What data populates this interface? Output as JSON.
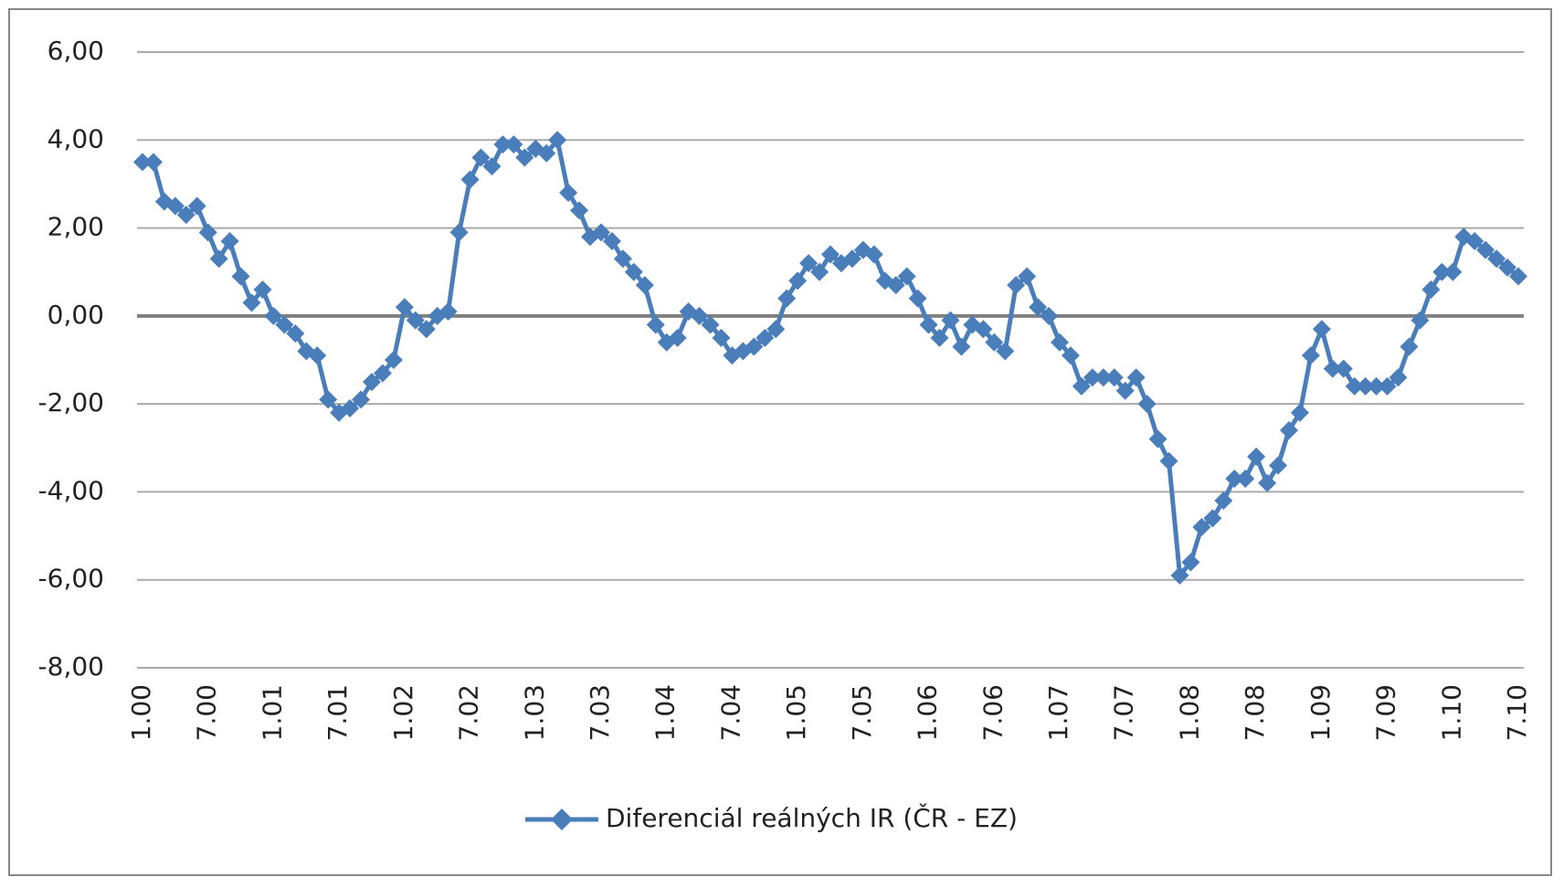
{
  "chart_data": {
    "type": "line",
    "categories": [
      "1.00",
      null,
      null,
      null,
      null,
      null,
      "7.00",
      null,
      null,
      null,
      null,
      null,
      "1.01",
      null,
      null,
      null,
      null,
      null,
      "7.01",
      null,
      null,
      null,
      null,
      null,
      "1.02",
      null,
      null,
      null,
      null,
      null,
      "7.02",
      null,
      null,
      null,
      null,
      null,
      "1.03",
      null,
      null,
      null,
      null,
      null,
      "7.03",
      null,
      null,
      null,
      null,
      null,
      "1.04",
      null,
      null,
      null,
      null,
      null,
      "7.04",
      null,
      null,
      null,
      null,
      null,
      "1.05",
      null,
      null,
      null,
      null,
      null,
      "7.05",
      null,
      null,
      null,
      null,
      null,
      "1.06",
      null,
      null,
      null,
      null,
      null,
      "7.06",
      null,
      null,
      null,
      null,
      null,
      "1.07",
      null,
      null,
      null,
      null,
      null,
      "7.07",
      null,
      null,
      null,
      null,
      null,
      "1.08",
      null,
      null,
      null,
      null,
      null,
      "7.08",
      null,
      null,
      null,
      null,
      null,
      "1.09",
      null,
      null,
      null,
      null,
      null,
      "7.09",
      null,
      null,
      null,
      null,
      null,
      "1.10",
      null,
      null,
      null,
      null,
      null,
      "7.10"
    ],
    "series": [
      {
        "name": "Diferenciál reálných IR (ČR - EZ)",
        "color": "#4a7ebb",
        "values": [
          3.5,
          3.5,
          2.6,
          2.5,
          2.3,
          2.5,
          1.9,
          1.3,
          1.7,
          0.9,
          0.3,
          0.6,
          0.0,
          -0.2,
          -0.4,
          -0.8,
          -0.9,
          -1.9,
          -2.2,
          -2.1,
          -1.9,
          -1.5,
          -1.3,
          -1.0,
          0.2,
          -0.1,
          -0.3,
          0.0,
          0.1,
          1.9,
          3.1,
          3.6,
          3.4,
          3.9,
          3.9,
          3.6,
          3.8,
          3.7,
          4.0,
          2.8,
          2.4,
          1.8,
          1.9,
          1.7,
          1.3,
          1.0,
          0.7,
          -0.2,
          -0.6,
          -0.5,
          0.1,
          0.0,
          -0.2,
          -0.5,
          -0.9,
          -0.8,
          -0.7,
          -0.5,
          -0.3,
          0.4,
          0.8,
          1.2,
          1.0,
          1.4,
          1.2,
          1.3,
          1.5,
          1.4,
          0.8,
          0.7,
          0.9,
          0.4,
          -0.2,
          -0.5,
          -0.1,
          -0.7,
          -0.2,
          -0.3,
          -0.6,
          -0.8,
          0.7,
          0.9,
          0.2,
          0.0,
          -0.6,
          -0.9,
          -1.6,
          -1.4,
          -1.4,
          -1.4,
          -1.7,
          -1.4,
          -2.0,
          -2.8,
          -3.3,
          -5.9,
          -5.6,
          -4.8,
          -4.6,
          -4.2,
          -3.7,
          -3.7,
          -3.2,
          -3.8,
          -3.4,
          -2.6,
          -2.2,
          -0.9,
          -0.3,
          -1.2,
          -1.2,
          -1.6,
          -1.6,
          -1.6,
          -1.6,
          -1.4,
          -0.7,
          -0.1,
          0.6,
          1.0,
          1.0,
          1.8,
          1.7,
          1.5,
          1.3,
          1.1,
          0.9
        ]
      }
    ],
    "ylim": [
      -8,
      6
    ],
    "yticks": [
      {
        "value": -8,
        "label": "-8,00"
      },
      {
        "value": -6,
        "label": "-6,00"
      },
      {
        "value": -4,
        "label": "-4,00"
      },
      {
        "value": -2,
        "label": "-2,00"
      },
      {
        "value": 0,
        "label": "0,00"
      },
      {
        "value": 2,
        "label": "2,00"
      },
      {
        "value": 4,
        "label": "4,00"
      },
      {
        "value": 6,
        "label": "6,00"
      }
    ],
    "grid": true,
    "legend": "bottom"
  }
}
